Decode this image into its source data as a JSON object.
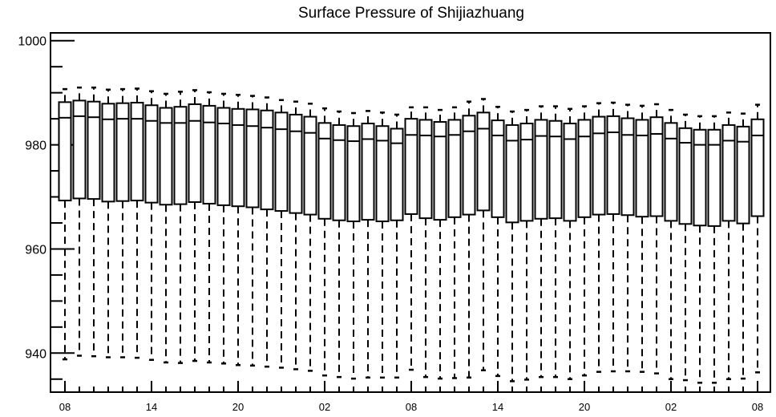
{
  "chart_data": {
    "type": "boxplot",
    "title": "Surface Pressure of Shijiazhuang",
    "xlabel": "",
    "ylabel": "",
    "ylim": [
      932.5,
      1001.5
    ],
    "yticks": [
      940,
      960,
      980,
      1000
    ],
    "x_tick_labels": [
      {
        "label": "08",
        "index": 0
      },
      {
        "label": "14",
        "index": 6
      },
      {
        "label": "20",
        "index": 12
      },
      {
        "label": "02",
        "index": 18
      },
      {
        "label": "08",
        "index": 24
      },
      {
        "label": "14",
        "index": 30
      },
      {
        "label": "20",
        "index": 36
      },
      {
        "label": "02",
        "index": 42
      },
      {
        "label": "08",
        "index": 48
      }
    ],
    "grid": false,
    "series": [
      {
        "min": [
          938.8,
          939.5,
          939.4,
          939.2,
          939.2,
          939.1,
          938.7,
          938.2,
          938.1,
          938.5,
          938.2,
          938.0,
          937.7,
          937.6,
          937.4,
          937.2,
          936.9,
          936.6,
          935.7,
          935.4,
          935.1,
          935.3,
          935.3,
          935.3,
          936.8,
          935.4,
          935.1,
          935.2,
          935.3,
          936.7,
          935.6,
          934.6,
          934.9,
          935.4,
          935.4,
          935.0,
          935.7,
          936.4,
          936.5,
          936.5,
          936.4,
          936.1,
          935.0,
          934.8,
          934.3,
          934.3,
          935.0,
          935.1,
          936.3
        ],
        "q1": [
          969.3,
          969.7,
          969.6,
          969.1,
          969.2,
          969.3,
          968.9,
          968.5,
          968.6,
          969.0,
          968.7,
          968.4,
          968.2,
          968.0,
          967.6,
          967.3,
          966.9,
          966.6,
          965.8,
          965.5,
          965.3,
          965.6,
          965.3,
          965.5,
          966.7,
          965.9,
          965.6,
          966.1,
          966.6,
          967.4,
          966.1,
          965.1,
          965.4,
          965.8,
          965.9,
          965.4,
          966.1,
          966.6,
          966.7,
          966.5,
          966.2,
          966.3,
          965.4,
          964.8,
          964.5,
          964.4,
          965.4,
          964.9,
          966.3
        ],
        "median": [
          985.2,
          985.5,
          985.3,
          984.9,
          985.0,
          985.0,
          984.6,
          984.2,
          984.2,
          984.6,
          984.3,
          984.1,
          983.8,
          983.6,
          983.3,
          983.0,
          982.6,
          982.3,
          981.2,
          980.9,
          980.7,
          981.1,
          980.8,
          980.3,
          981.9,
          981.8,
          981.6,
          981.9,
          982.6,
          983.1,
          981.8,
          980.8,
          981.0,
          981.7,
          981.6,
          981.1,
          981.6,
          982.2,
          982.4,
          981.9,
          981.8,
          982.1,
          981.2,
          980.4,
          980.0,
          980.0,
          980.8,
          980.6,
          981.8
        ],
        "q3": [
          988.2,
          988.5,
          988.3,
          987.9,
          988.0,
          988.1,
          987.6,
          987.1,
          987.3,
          987.8,
          987.5,
          987.1,
          986.9,
          986.8,
          986.6,
          986.2,
          985.8,
          985.4,
          984.2,
          983.8,
          983.6,
          984.1,
          983.6,
          983.1,
          985.0,
          984.8,
          984.4,
          984.8,
          985.6,
          986.2,
          984.7,
          983.8,
          984.1,
          984.8,
          984.6,
          984.1,
          984.8,
          985.4,
          985.5,
          985.1,
          984.8,
          985.3,
          984.2,
          983.2,
          982.9,
          982.9,
          983.8,
          983.5,
          984.9
        ],
        "max": [
          990.7,
          991.0,
          991.0,
          990.6,
          990.7,
          990.8,
          990.3,
          989.8,
          990.2,
          990.5,
          990.1,
          989.8,
          989.6,
          989.4,
          989.1,
          988.6,
          988.3,
          987.9,
          987.0,
          986.4,
          986.1,
          986.5,
          986.2,
          985.8,
          987.2,
          987.2,
          986.7,
          987.2,
          988.3,
          988.8,
          987.3,
          986.4,
          986.7,
          987.4,
          987.4,
          986.9,
          987.4,
          988.0,
          988.1,
          987.7,
          987.5,
          987.8,
          986.7,
          985.8,
          985.5,
          985.5,
          986.2,
          986.0,
          987.7
        ]
      }
    ]
  }
}
